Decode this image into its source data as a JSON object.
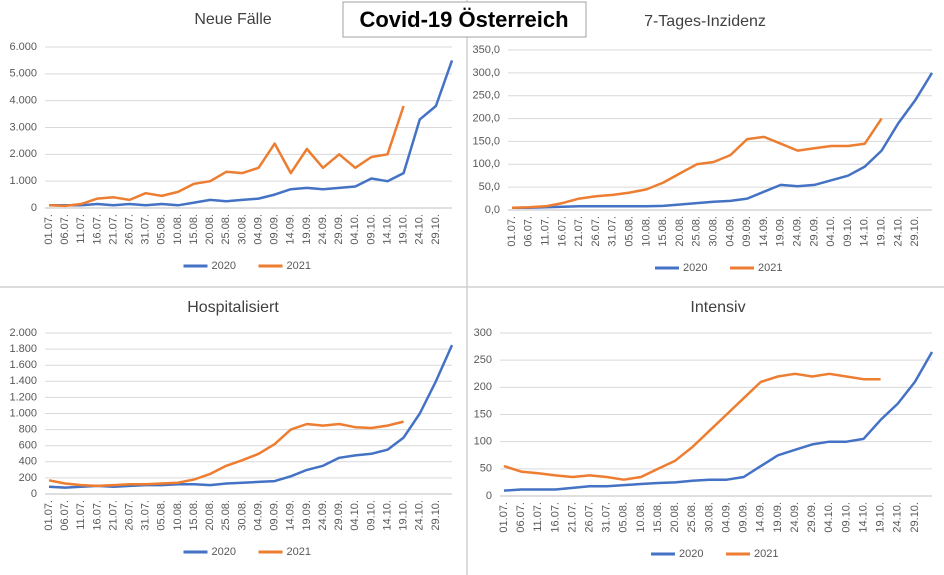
{
  "title": "Covid-19 Österreich",
  "chart_data": [
    {
      "type": "line",
      "title": "Neue Fälle",
      "categories": [
        "01.07.",
        "06.07.",
        "11.07.",
        "16.07.",
        "21.07.",
        "26.07.",
        "31.07.",
        "05.08.",
        "10.08.",
        "15.08.",
        "20.08.",
        "25.08.",
        "30.08.",
        "04.09.",
        "09.09.",
        "14.09.",
        "19.09.",
        "24.09.",
        "29.09.",
        "04.10.",
        "09.10.",
        "14.10.",
        "19.10.",
        "24.10.",
        "29.10.",
        null
      ],
      "series": [
        {
          "name": "2020",
          "color": "#4472c4",
          "values": [
            100,
            100,
            100,
            150,
            100,
            150,
            100,
            150,
            100,
            200,
            300,
            250,
            300,
            350,
            500,
            700,
            750,
            700,
            750,
            800,
            1100,
            1000,
            1300,
            3300,
            3800,
            5500
          ]
        },
        {
          "name": "2021",
          "color": "#ed7d31",
          "values": [
            100,
            80,
            150,
            350,
            400,
            300,
            550,
            450,
            600,
            900,
            1000,
            1350,
            1300,
            1500,
            2400,
            1300,
            2200,
            1500,
            2000,
            1500,
            1900,
            2000,
            3800,
            null,
            null,
            null
          ]
        }
      ],
      "ylim": [
        0,
        6000
      ],
      "yticks": [
        0,
        {
          "value": 1000,
          "label": "1.000"
        },
        {
          "value": 2000,
          "label": "2.000"
        },
        {
          "value": 3000,
          "label": "3.000"
        },
        {
          "value": 4000,
          "label": "4.000"
        },
        {
          "value": 5000,
          "label": "5.000"
        },
        {
          "value": 6000,
          "label": "6.000"
        }
      ],
      "grid": true,
      "legend": "bottom"
    },
    {
      "type": "line",
      "title": "7-Tages-Inzidenz",
      "categories": [
        "01.07.",
        "06.07.",
        "11.07.",
        "16.07.",
        "21.07.",
        "26.07.",
        "31.07.",
        "05.08.",
        "10.08.",
        "15.08.",
        "20.08.",
        "25.08.",
        "30.08.",
        "04.09.",
        "09.09.",
        "14.09.",
        "19.09.",
        "24.09.",
        "29.09.",
        "04.10.",
        "09.10.",
        "14.10.",
        "19.10.",
        "24.10.",
        "29.10.",
        null
      ],
      "series": [
        {
          "name": "2020",
          "color": "#4472c4",
          "values": [
            5,
            5,
            6,
            7,
            8,
            8,
            8,
            8,
            8,
            9,
            12,
            15,
            18,
            20,
            25,
            40,
            55,
            52,
            55,
            65,
            75,
            95,
            130,
            190,
            240,
            300
          ]
        },
        {
          "name": "2021",
          "color": "#ed7d31",
          "values": [
            5,
            6,
            8,
            15,
            25,
            30,
            33,
            38,
            45,
            60,
            80,
            100,
            105,
            120,
            155,
            160,
            145,
            130,
            135,
            140,
            140,
            145,
            200,
            null,
            null,
            null
          ]
        }
      ],
      "ylim": [
        0,
        350
      ],
      "yticks": [
        {
          "value": 0,
          "label": "0,0"
        },
        {
          "value": 50,
          "label": "50,0"
        },
        {
          "value": 100,
          "label": "100,0"
        },
        {
          "value": 150,
          "label": "150,0"
        },
        {
          "value": 200,
          "label": "200,0"
        },
        {
          "value": 250,
          "label": "250,0"
        },
        {
          "value": 300,
          "label": "300,0"
        },
        {
          "value": 350,
          "label": "350,0"
        }
      ],
      "grid": true,
      "legend": "bottom"
    },
    {
      "type": "line",
      "title": "Hospitalisiert",
      "categories": [
        "01.07.",
        "06.07.",
        "11.07.",
        "16.07.",
        "21.07.",
        "26.07.",
        "31.07.",
        "05.08.",
        "10.08.",
        "15.08.",
        "20.08.",
        "25.08.",
        "30.08.",
        "04.09.",
        "09.09.",
        "14.09.",
        "19.09.",
        "24.09.",
        "29.09.",
        "04.10.",
        "09.10.",
        "14.10.",
        "19.10.",
        "24.10.",
        "29.10.",
        null
      ],
      "series": [
        {
          "name": "2020",
          "color": "#4472c4",
          "values": [
            90,
            80,
            90,
            100,
            90,
            100,
            110,
            110,
            120,
            120,
            110,
            130,
            140,
            150,
            160,
            220,
            300,
            350,
            450,
            480,
            500,
            550,
            700,
            1000,
            1400,
            1850
          ]
        },
        {
          "name": "2021",
          "color": "#ed7d31",
          "values": [
            170,
            130,
            110,
            100,
            110,
            120,
            120,
            130,
            140,
            180,
            250,
            350,
            420,
            500,
            620,
            800,
            870,
            850,
            870,
            830,
            820,
            850,
            900,
            null,
            null,
            null
          ]
        }
      ],
      "ylim": [
        0,
        2000
      ],
      "yticks": [
        0,
        200,
        400,
        600,
        800,
        {
          "value": 1000,
          "label": "1.000"
        },
        {
          "value": 1200,
          "label": "1.200"
        },
        {
          "value": 1400,
          "label": "1.400"
        },
        {
          "value": 1600,
          "label": "1.600"
        },
        {
          "value": 1800,
          "label": "1.800"
        },
        {
          "value": 2000,
          "label": "2.000"
        }
      ],
      "grid": true,
      "legend": "bottom"
    },
    {
      "type": "line",
      "title": "Intensiv",
      "categories": [
        "01.07.",
        "06.07.",
        "11.07.",
        "16.07.",
        "21.07.",
        "26.07.",
        "31.07.",
        "05.08.",
        "10.08.",
        "15.08.",
        "20.08.",
        "25.08.",
        "30.08.",
        "04.09.",
        "09.09.",
        "14.09.",
        "19.09.",
        "24.09.",
        "29.09.",
        "04.10.",
        "09.10.",
        "14.10.",
        "19.10.",
        "24.10.",
        "29.10.",
        null
      ],
      "series": [
        {
          "name": "2020",
          "color": "#4472c4",
          "values": [
            10,
            12,
            12,
            12,
            15,
            18,
            18,
            20,
            22,
            24,
            25,
            28,
            30,
            30,
            35,
            55,
            75,
            85,
            95,
            100,
            100,
            105,
            140,
            170,
            210,
            265
          ]
        },
        {
          "name": "2021",
          "color": "#ed7d31",
          "values": [
            55,
            45,
            42,
            38,
            35,
            38,
            35,
            30,
            35,
            50,
            65,
            90,
            120,
            150,
            180,
            210,
            220,
            225,
            220,
            225,
            220,
            215,
            215,
            null,
            null,
            null
          ]
        }
      ],
      "ylim": [
        0,
        300
      ],
      "yticks": [
        0,
        50,
        100,
        150,
        200,
        250,
        300
      ],
      "grid": true,
      "legend": "bottom"
    }
  ]
}
